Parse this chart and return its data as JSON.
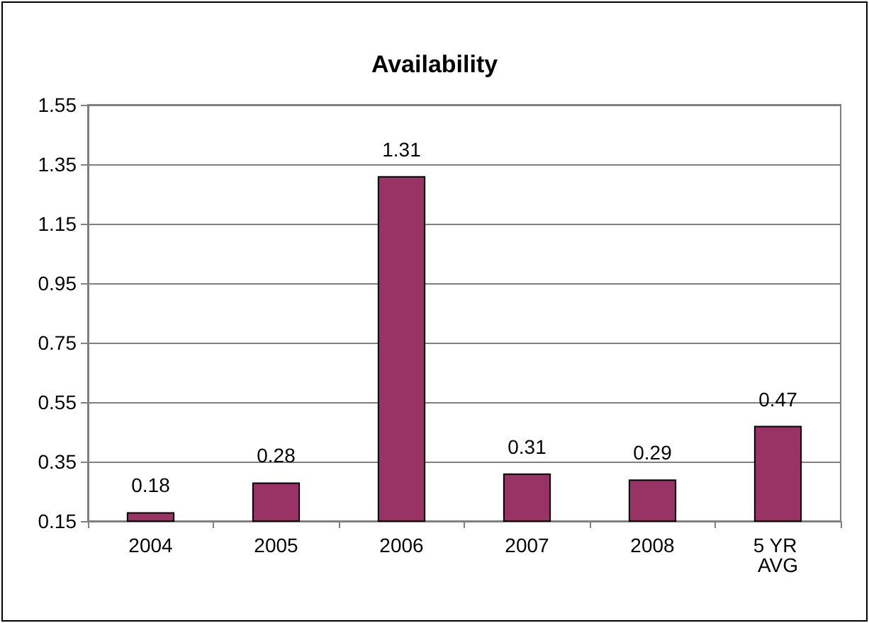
{
  "chart_data": {
    "type": "bar",
    "title": "Availability",
    "categories": [
      "2004",
      "2005",
      "2006",
      "2007",
      "2008",
      "5 YR AVG"
    ],
    "values": [
      0.18,
      0.28,
      1.31,
      0.31,
      0.29,
      0.47
    ],
    "color": "#993366",
    "ylim": [
      0.15,
      1.55
    ],
    "yticks": [
      0.15,
      0.35,
      0.55,
      0.75,
      0.95,
      1.15,
      1.35,
      1.55
    ],
    "grid": "y",
    "data_labels": true
  }
}
